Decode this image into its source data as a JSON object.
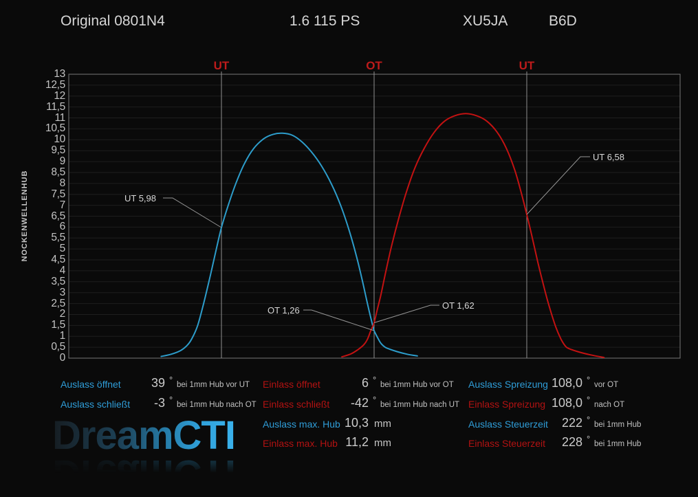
{
  "header": {
    "variant": "Original 0801N4",
    "engine": "1.6 115 PS",
    "engine_code": "XU5JA",
    "head_code": "B6D"
  },
  "chart_data": {
    "type": "line",
    "ylabel": "NOCKENWELLENHUB",
    "ylim": [
      0,
      13
    ],
    "xlim_deg_rel_ot": [
      -360,
      360
    ],
    "grid": true,
    "ytick_labels": [
      "13",
      "12,5",
      "12",
      "11,5",
      "11",
      "10,5",
      "10",
      "9,5",
      "9",
      "8,5",
      "8",
      "7,5",
      "7",
      "6,5",
      "6",
      "5,5",
      "5",
      "4,5",
      "4",
      "3,5",
      "3",
      "2,5",
      "2",
      "1,5",
      "1",
      "0,5",
      "0"
    ],
    "x_markers": [
      {
        "label": "UT",
        "angle": -180
      },
      {
        "label": "OT",
        "angle": 0
      },
      {
        "label": "UT",
        "angle": 180
      }
    ],
    "series": [
      {
        "name": "Auslass",
        "color": "#2d9dcb",
        "points": [
          [
            -251,
            0.08
          ],
          [
            -240,
            0.17
          ],
          [
            -229,
            0.33
          ],
          [
            -221,
            0.56
          ],
          [
            -215,
            0.88
          ],
          [
            -208,
            1.5
          ],
          [
            -201,
            2.5
          ],
          [
            -193,
            3.8
          ],
          [
            -186,
            5.0
          ],
          [
            -180,
            5.98
          ],
          [
            -172,
            7.0
          ],
          [
            -163,
            8.0
          ],
          [
            -153,
            8.9
          ],
          [
            -142,
            9.6
          ],
          [
            -130,
            10.05
          ],
          [
            -119,
            10.25
          ],
          [
            -108,
            10.3
          ],
          [
            -96,
            10.2
          ],
          [
            -85,
            9.9
          ],
          [
            -74,
            9.45
          ],
          [
            -62,
            8.8
          ],
          [
            -50,
            7.95
          ],
          [
            -39,
            6.95
          ],
          [
            -29,
            5.8
          ],
          [
            -20,
            4.55
          ],
          [
            -13,
            3.4
          ],
          [
            -7,
            2.35
          ],
          [
            -2,
            1.55
          ],
          [
            0,
            1.26
          ],
          [
            4,
            0.95
          ],
          [
            8,
            0.68
          ],
          [
            13,
            0.5
          ],
          [
            17,
            0.43
          ],
          [
            27,
            0.3
          ],
          [
            39,
            0.18
          ],
          [
            51,
            0.1
          ]
        ]
      },
      {
        "name": "Einlass",
        "color": "#c31212",
        "points": [
          [
            -38,
            0.06
          ],
          [
            -27,
            0.2
          ],
          [
            -18,
            0.42
          ],
          [
            -12,
            0.62
          ],
          [
            -8,
            0.85
          ],
          [
            -4,
            1.25
          ],
          [
            0,
            1.62
          ],
          [
            3,
            2.1
          ],
          [
            8,
            2.9
          ],
          [
            14,
            4.0
          ],
          [
            21,
            5.2
          ],
          [
            29,
            6.4
          ],
          [
            38,
            7.6
          ],
          [
            48,
            8.7
          ],
          [
            59,
            9.6
          ],
          [
            71,
            10.35
          ],
          [
            83,
            10.85
          ],
          [
            95,
            11.1
          ],
          [
            108,
            11.2
          ],
          [
            121,
            11.1
          ],
          [
            133,
            10.85
          ],
          [
            145,
            10.35
          ],
          [
            156,
            9.6
          ],
          [
            166,
            8.6
          ],
          [
            174,
            7.5
          ],
          [
            180,
            6.58
          ],
          [
            186,
            5.6
          ],
          [
            193,
            4.4
          ],
          [
            200,
            3.3
          ],
          [
            207,
            2.3
          ],
          [
            214,
            1.45
          ],
          [
            220,
            0.9
          ],
          [
            225,
            0.58
          ],
          [
            229,
            0.45
          ],
          [
            240,
            0.3
          ],
          [
            255,
            0.15
          ],
          [
            271,
            0.03
          ]
        ]
      }
    ],
    "annotations": [
      {
        "label": "UT 5,98",
        "angle": -180,
        "lift": 5.98
      },
      {
        "label": "OT 1,26",
        "angle": 0,
        "lift": 1.26
      },
      {
        "label": "OT 1,62",
        "angle": 0,
        "lift": 1.62
      },
      {
        "label": "UT 6,58",
        "angle": 180,
        "lift": 6.58
      }
    ]
  },
  "table": {
    "col1": [
      {
        "label": "Auslass öffnet",
        "color": "blue",
        "value": "39",
        "unit": "°",
        "note": "bei 1mm Hub vor UT"
      },
      {
        "label": "Auslass schließt",
        "color": "blue",
        "value": "-3",
        "unit": "°",
        "note": "bei 1mm Hub nach OT"
      }
    ],
    "col2": [
      {
        "label": "Einlass öffnet",
        "color": "red",
        "value": "6",
        "unit": "°",
        "note": "bei 1mm Hub vor OT"
      },
      {
        "label": "Einlass schließt",
        "color": "red",
        "value": "-42",
        "unit": "°",
        "note": "bei 1mm Hub nach UT"
      },
      {
        "label": "Auslass max. Hub",
        "color": "blue",
        "value": "10,3",
        "unit": "mm",
        "note": ""
      },
      {
        "label": "Einlass max. Hub",
        "color": "red",
        "value": "11,2",
        "unit": "mm",
        "note": ""
      }
    ],
    "col3": [
      {
        "label": "Auslass Spreizung",
        "color": "blue",
        "value": "108,0",
        "unit": "°",
        "note": "vor OT"
      },
      {
        "label": "Einlass Spreizung",
        "color": "red",
        "value": "108,0",
        "unit": "°",
        "note": "nach OT"
      },
      {
        "label": "Auslass Steuerzeit",
        "color": "blue",
        "value": "222",
        "unit": "°",
        "note": "bei 1mm Hub"
      },
      {
        "label": "Einlass Steuerzeit",
        "color": "red",
        "value": "228",
        "unit": "°",
        "note": "bei 1mm Hub"
      }
    ]
  },
  "logo": {
    "text": "DreamCTI"
  },
  "colors": {
    "background": "#0a0a0a",
    "plot_border": "#787878",
    "gridline": "#1e1e1e",
    "marker_line": "#909090",
    "marker_label": "#be1b1b",
    "curve_auslass": "#2d9dcb",
    "curve_einlass": "#c31212",
    "table_blue": "#2f9dd8",
    "table_red": "#b31212",
    "leader_line": "#969696"
  }
}
